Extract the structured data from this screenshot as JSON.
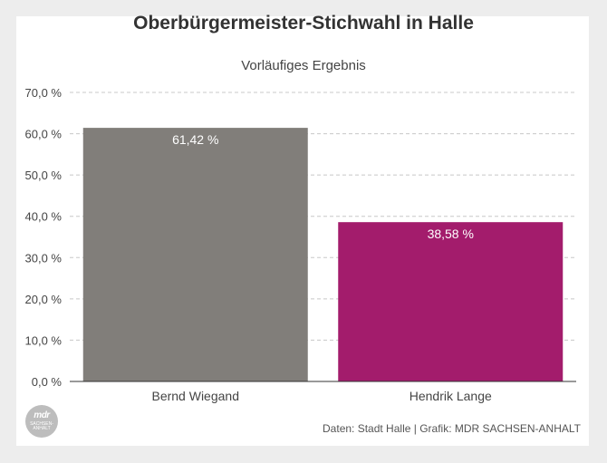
{
  "title": "Oberbürgermeister-Stichwahl in Halle",
  "subtitle": "Vorläufiges Ergebnis",
  "footer": "Daten: Stadt Halle | Grafik: MDR SACHSEN-ANHALT",
  "logo": {
    "text": "mdr",
    "subtext": "SACHSEN-ANHALT"
  },
  "colors": {
    "wiegand": "#817e7a",
    "lange": "#a31c6c",
    "grid": "#c8c8c8",
    "background": "#ededed"
  },
  "chart_data": {
    "type": "bar",
    "title": "Oberbürgermeister-Stichwahl in Halle",
    "subtitle": "Vorläufiges Ergebnis",
    "categories": [
      "Bernd Wiegand",
      "Hendrik Lange"
    ],
    "values": [
      61.42,
      38.58
    ],
    "data_labels": [
      "61,42 %",
      "38,58 %"
    ],
    "bar_colors": [
      "#817e7a",
      "#a31c6c"
    ],
    "ylim": [
      0,
      70
    ],
    "yticks": [
      0,
      10,
      20,
      30,
      40,
      50,
      60,
      70
    ],
    "ytick_labels": [
      "0,0 %",
      "10,0 %",
      "20,0 %",
      "30,0 %",
      "40,0 %",
      "50,0 %",
      "60,0 %",
      "70,0 %"
    ],
    "grid": true,
    "xlabel": "",
    "ylabel": ""
  }
}
